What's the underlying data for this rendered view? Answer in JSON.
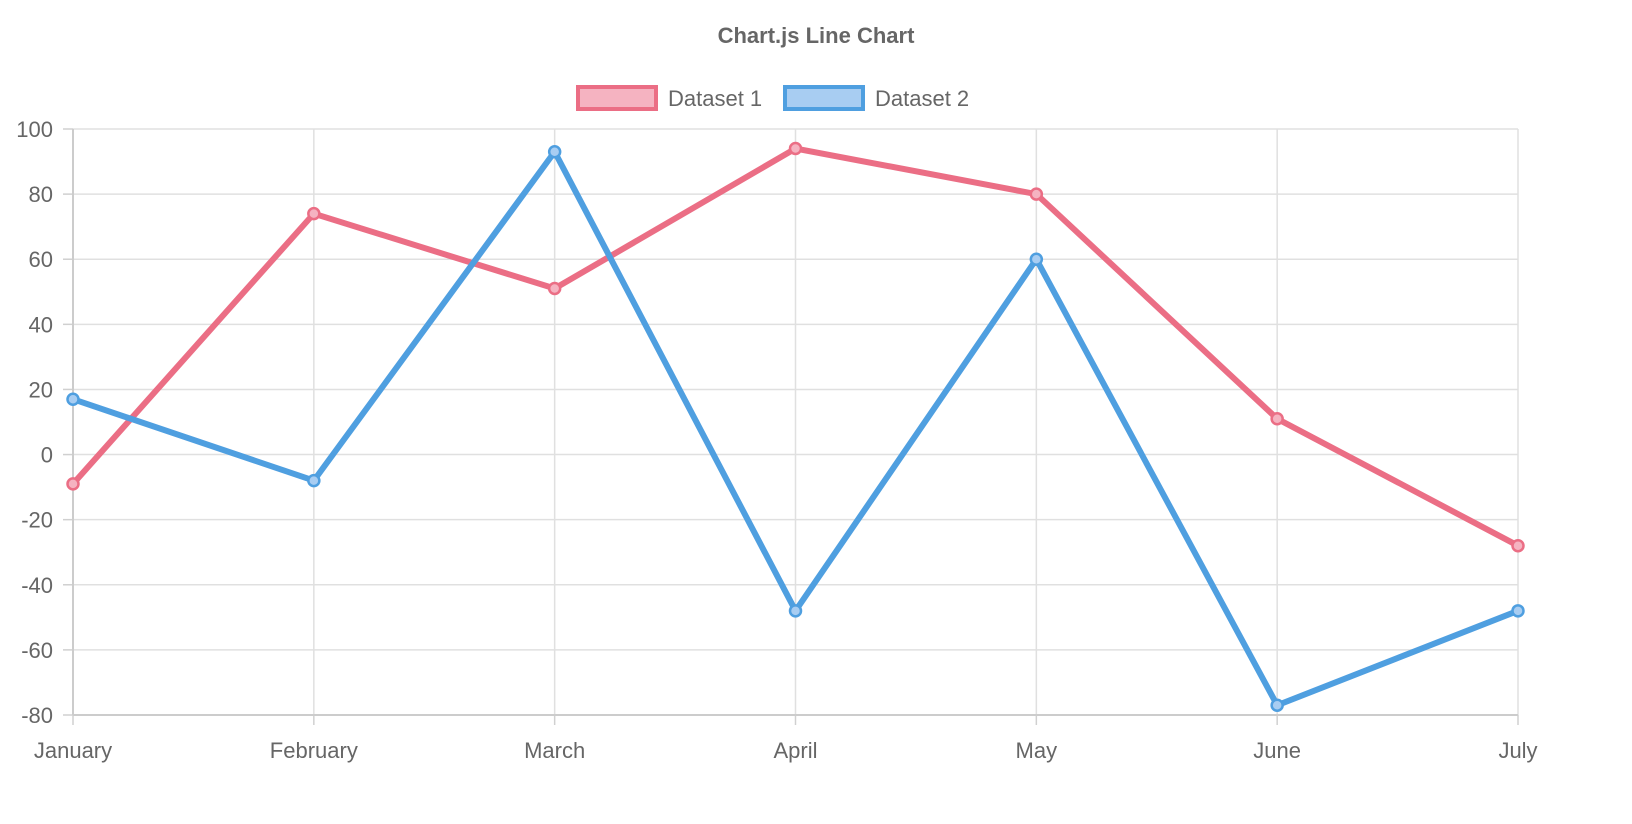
{
  "chart_data": {
    "type": "line",
    "title": "Chart.js Line Chart",
    "categories": [
      "January",
      "February",
      "March",
      "April",
      "May",
      "June",
      "July"
    ],
    "ylim": [
      -80,
      100
    ],
    "yticks": [
      100,
      80,
      60,
      40,
      20,
      0,
      -20,
      -40,
      -60,
      -80
    ],
    "grid": true,
    "legend_position": "top",
    "series": [
      {
        "name": "Dataset 1",
        "values": [
          -9,
          74,
          51,
          94,
          80,
          11,
          -28
        ],
        "color": "#eb6e85",
        "fill": "#f5b3c1"
      },
      {
        "name": "Dataset 2",
        "values": [
          17,
          -8,
          93,
          -48,
          60,
          -77,
          -48
        ],
        "color": "#4f9fe0",
        "fill": "#a8cdf2"
      }
    ]
  }
}
